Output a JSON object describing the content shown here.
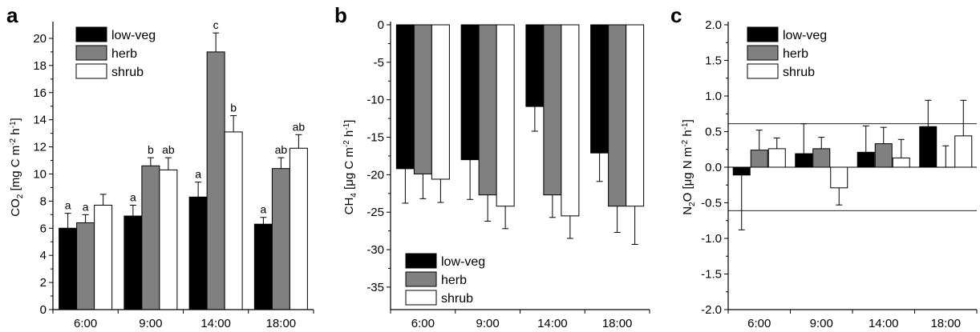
{
  "chart_data": [
    {
      "type": "bar",
      "panel_label": "a",
      "categories": [
        "6:00",
        "9:00",
        "14:00",
        "18:00"
      ],
      "ylabel": {
        "pre": "CO",
        "sub": "2",
        "mid": " [mg C m",
        "sup1": "-2",
        "mid2": " h",
        "sup2": "-1",
        "post": "]"
      },
      "ylim": [
        0,
        21
      ],
      "yticks": [
        0,
        2,
        4,
        6,
        8,
        10,
        12,
        14,
        16,
        18,
        20
      ],
      "zero_line": false,
      "legend_position": "top-left",
      "series": [
        {
          "name": "low-veg",
          "color": "#000000",
          "values": [
            6.0,
            6.9,
            8.3,
            6.3
          ],
          "errors": [
            1.1,
            0.8,
            1.1,
            0.5
          ],
          "labels": [
            "a",
            "a",
            "a",
            "a"
          ]
        },
        {
          "name": "herb",
          "color": "#808080",
          "values": [
            6.4,
            10.6,
            19.0,
            10.4
          ],
          "errors": [
            0.6,
            0.6,
            1.4,
            0.8
          ],
          "labels": [
            "a",
            "b",
            "c",
            "ab"
          ]
        },
        {
          "name": "shrub",
          "color": "#ffffff",
          "values": [
            7.7,
            10.3,
            13.1,
            11.9
          ],
          "errors": [
            0.8,
            0.9,
            1.2,
            1.0
          ],
          "labels": [
            "",
            "ab",
            "b",
            "ab"
          ]
        }
      ]
    },
    {
      "type": "bar",
      "panel_label": "b",
      "categories": [
        "6:00",
        "9:00",
        "14:00",
        "18:00"
      ],
      "ylabel": {
        "pre": "CH",
        "sub": "4",
        "mid": " [μg C m",
        "sup1": "-2",
        "mid2": " h",
        "sup2": "-1",
        "post": "]"
      },
      "ylim": [
        -38,
        0
      ],
      "yticks": [
        0,
        -5,
        -10,
        -15,
        -20,
        -25,
        -30,
        -35
      ],
      "zero_line": false,
      "legend_position": "bottom-left",
      "series": [
        {
          "name": "low-veg",
          "color": "#000000",
          "values": [
            -19.2,
            -18.0,
            -10.9,
            -17.1
          ],
          "errors": [
            4.6,
            5.3,
            3.3,
            3.8
          ],
          "labels": [
            "",
            "",
            "",
            ""
          ]
        },
        {
          "name": "herb",
          "color": "#808080",
          "values": [
            -19.9,
            -22.7,
            -22.7,
            -24.2
          ],
          "errors": [
            3.3,
            3.5,
            3.0,
            3.5
          ],
          "labels": [
            "",
            "",
            "",
            ""
          ]
        },
        {
          "name": "shrub",
          "color": "#ffffff",
          "values": [
            -20.6,
            -24.2,
            -25.5,
            -24.2
          ],
          "errors": [
            3.1,
            3.0,
            3.0,
            5.1
          ],
          "labels": [
            "",
            "",
            "",
            ""
          ]
        }
      ]
    },
    {
      "type": "bar",
      "panel_label": "c",
      "categories": [
        "6:00",
        "9:00",
        "14:00",
        "18:00"
      ],
      "ylabel": {
        "pre": "N",
        "sub": "2",
        "mid": "O [μg N m",
        "sup1": "-2",
        "mid2": " h",
        "sup2": "-1",
        "post": "]"
      },
      "ylim": [
        -2.0,
        2.0
      ],
      "yticks": [
        2.0,
        1.5,
        1.0,
        0.5,
        0.0,
        -0.5,
        -1.0,
        -1.5,
        -2.0
      ],
      "ytick_labels": [
        "2.0",
        "1.5",
        "1.0",
        "0.5",
        "0.0",
        "-0.5",
        "-1.0",
        "-1.5",
        "-2.0"
      ],
      "zero_line": true,
      "reference_lines": [
        0.61,
        -0.61
      ],
      "legend_position": "top-left",
      "series": [
        {
          "name": "low-veg",
          "color": "#000000",
          "values": [
            -0.11,
            0.19,
            0.21,
            0.57
          ],
          "errors": [
            0.77,
            0.42,
            0.37,
            0.37
          ],
          "labels": [
            "",
            "",
            "",
            ""
          ]
        },
        {
          "name": "herb",
          "color": "#808080",
          "values": [
            0.24,
            0.26,
            0.33,
            0.0
          ],
          "errors": [
            0.28,
            0.16,
            0.23,
            0.3
          ],
          "labels": [
            "",
            "",
            "",
            ""
          ]
        },
        {
          "name": "shrub",
          "color": "#ffffff",
          "values": [
            0.26,
            -0.29,
            0.13,
            0.44
          ],
          "errors": [
            0.15,
            0.24,
            0.26,
            0.5
          ],
          "labels": [
            "",
            "",
            "",
            ""
          ]
        }
      ]
    }
  ]
}
